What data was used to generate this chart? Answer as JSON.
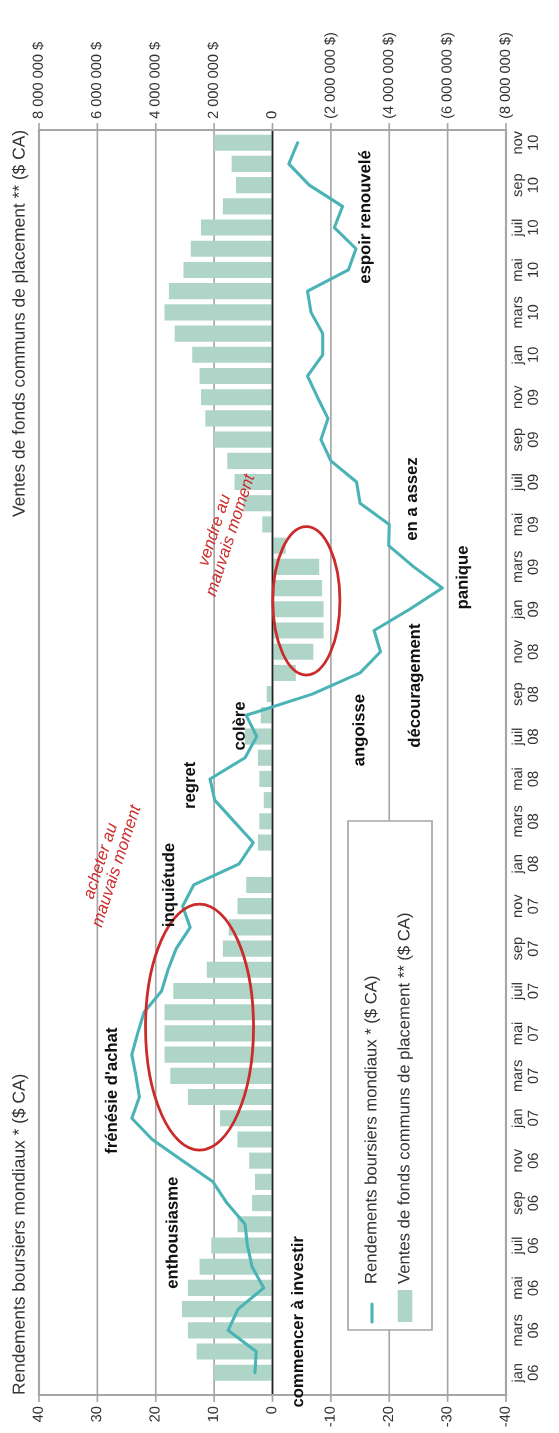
{
  "chart_data": {
    "type": "bar",
    "orientation": "horizontal",
    "categories": [
      "nov\n10",
      null,
      "sep\n10",
      null,
      "juil\n10",
      null,
      "mai\n10",
      null,
      "mars\n10",
      null,
      "jan\n10",
      null,
      "nov\n09",
      null,
      "sep\n09",
      null,
      "juil\n09",
      null,
      "mai\n09",
      null,
      "mars\n09",
      null,
      "jan\n09",
      null,
      "nov\n08",
      null,
      "sep\n08",
      null,
      "juil\n08",
      null,
      "mai\n08",
      null,
      "mars\n08",
      null,
      "jan\n08",
      null,
      "nov\n07",
      null,
      "sep\n07",
      null,
      "juil\n07",
      null,
      "mai\n07",
      null,
      "mars\n07",
      null,
      "jan\n07",
      null,
      "nov\n06",
      null,
      "sep\n06",
      null,
      "juil\n06",
      null,
      "mai\n06",
      null,
      "mars\n06",
      null,
      "jan\n06"
    ],
    "series": [
      {
        "name": "Rendements boursiers mondiaux * ($ CA)",
        "type": "line",
        "color": "#4ab3b6",
        "values": [
          -4.3,
          -2.8,
          -6.3,
          -12.0,
          -10.6,
          -14.3,
          -13.0,
          -6.0,
          -6.6,
          -8.6,
          -8.6,
          -6.0,
          -7.7,
          -9.5,
          -8.3,
          -10.0,
          -14.4,
          -15.0,
          -20.0,
          -19.9,
          -24.2,
          -29.1,
          -23.5,
          -17.4,
          -18.5,
          -15.0,
          -6.8,
          4.5,
          2.7,
          4.7,
          10.7,
          9.9,
          6.6,
          3.3,
          5.7,
          13.5,
          15.4,
          14.1,
          16.5,
          17.9,
          19.0,
          22.0,
          23.1,
          24.1,
          23.4,
          22.8,
          24.1,
          20.6,
          15.4,
          10.2,
          7.8,
          4.7,
          4.3,
          3.5,
          1.5,
          5.9,
          7.6,
          2.8,
          3.0
        ]
      },
      {
        "name": "Ventes de fonds communs de placement ** ($ CA)",
        "axis": "x2",
        "color": "#afd4c8",
        "values": [
          2000000,
          1400000,
          1250000,
          1700000,
          2450000,
          2800000,
          3050000,
          3550000,
          3700000,
          3350000,
          2750000,
          2500000,
          2450000,
          2300000,
          2000000,
          1550000,
          1300000,
          1000000,
          350000,
          -450000,
          -1600000,
          -1700000,
          -1750000,
          -1750000,
          -1400000,
          -800000,
          200000,
          400000,
          950000,
          500000,
          450000,
          300000,
          450000,
          500000,
          null,
          900000,
          1200000,
          1500000,
          1700000,
          2250000,
          3400000,
          3700000,
          3700000,
          3700000,
          3500000,
          2900000,
          1800000,
          1200000,
          800000,
          600000,
          700000,
          1200000,
          2100000,
          2500000,
          2900000,
          3100000,
          2900000,
          2600000,
          2000000
        ]
      }
    ],
    "xlim": [
      40,
      -40
    ],
    "xticks": [
      40,
      30,
      20,
      10,
      0,
      -10,
      -20,
      -30,
      -40
    ],
    "x2lim": [
      8000000,
      -8000000
    ],
    "x2ticks": [
      {
        "value": 8000000,
        "label": "8 000 000 $"
      },
      {
        "value": 6000000,
        "label": "6 000 000 $"
      },
      {
        "value": 4000000,
        "label": "4 000 000 $"
      },
      {
        "value": 2000000,
        "label": "2 000 000 $"
      },
      0,
      {
        "value": -2000000,
        "label": "(2 000 000 $)"
      },
      {
        "value": -4000000,
        "label": "(4 000 000 $)"
      },
      {
        "value": -6000000,
        "label": "(6 000 000 $)"
      },
      {
        "value": -8000000,
        "label": "(8 000 000 $)"
      }
    ],
    "grid": "x",
    "legend": "bottom right",
    "annotations": [
      "commencer à investir",
      "enthousiasme",
      "frénésie d'achat",
      "inquiétude",
      "regret",
      "colère",
      "angoisse",
      "découragement",
      "panique",
      "en a assez",
      "espoir renouvelé",
      "acheter au\nmauvais moment",
      "vendre au\nmauvais moment",
      "Rendements boursiers mondiaux * ($ CA)",
      "Ventes de fonds communs de placement ** ($ CA)"
    ]
  }
}
